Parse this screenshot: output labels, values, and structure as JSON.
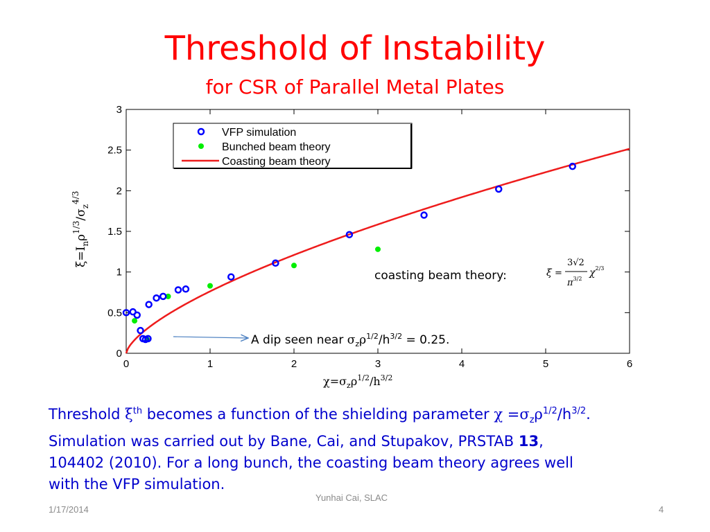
{
  "slide": {
    "title": "Threshold of Instability",
    "subtitle": "for CSR of Parallel Metal Plates",
    "caption": {
      "l1_a": "Threshold ",
      "xi": "ξ",
      "th": "th",
      "l1_b": " becomes a function of the shielding parameter ",
      "chi": "χ",
      "eq": " =",
      "sigma": "σ",
      "z": "z",
      "rho": "ρ",
      "half": "1/2",
      "slash_h": "/h",
      "threehalf": "3/2",
      "end": ".",
      "l2_a": "Simulation was carried out by Bane, Cai, and Stupakov, PRSTAB ",
      "vol": "13",
      "l2_b": ",",
      "l3": "104402 (2010).  For a long bunch, the coasting beam theory agrees well",
      "l4": "with the VFP simulation."
    },
    "footer": {
      "date": "1/17/2014",
      "author": "Yunhai Cai, SLAC",
      "page": "4"
    }
  },
  "chart_data": {
    "type": "scatter",
    "xlim": [
      0,
      6
    ],
    "ylim": [
      0,
      3
    ],
    "x_ticks": [
      "0",
      "1",
      "2",
      "3",
      "4",
      "5",
      "6"
    ],
    "y_ticks": [
      "0",
      "0.5",
      "1",
      "1.5",
      "2",
      "2.5",
      "3"
    ],
    "xlabel": "χ=σzρ1/2/h3/2",
    "ylabel": "ξ=Inρ1/3/σz4/3",
    "legend_position": "top-left",
    "series": [
      {
        "name": "VFP simulation",
        "marker": "open-circle",
        "color": "#0000ff",
        "x": [
          0.0,
          0.08,
          0.13,
          0.17,
          0.2,
          0.23,
          0.26,
          0.27,
          0.36,
          0.44,
          0.62,
          0.71,
          1.25,
          1.78,
          2.66,
          3.55,
          4.44,
          5.32
        ],
        "y": [
          0.5,
          0.51,
          0.47,
          0.28,
          0.18,
          0.17,
          0.18,
          0.6,
          0.68,
          0.7,
          0.78,
          0.79,
          0.94,
          1.11,
          1.46,
          1.7,
          2.02,
          2.3
        ]
      },
      {
        "name": "Bunched beam theory",
        "marker": "filled-dot",
        "color": "#00ee00",
        "x": [
          0.1,
          0.25,
          0.5,
          1.0,
          2.0,
          3.0
        ],
        "y": [
          0.4,
          0.17,
          0.7,
          0.83,
          1.08,
          1.28
        ]
      },
      {
        "name": "Coasting beam theory",
        "marker": "line",
        "color": "#ee0000",
        "formula": "ξ = 3√2/π^(3/2) χ^(2/3)"
      }
    ],
    "annotations": {
      "dip": {
        "prefix": "A dip seen near ",
        "sigma": "σ",
        "z": "z",
        "rho": "ρ",
        "half": "1/2",
        "slash_h": "/h",
        "threehalf": "3/2",
        "suffix": " = 0.25."
      },
      "coasting": {
        "label": "coasting beam theory:",
        "xi": "ξ",
        "eq": "=",
        "num": "3√2",
        "den": "π",
        "den_exp": "3/2",
        "chi": "χ",
        "chi_exp": "2/3"
      }
    }
  }
}
